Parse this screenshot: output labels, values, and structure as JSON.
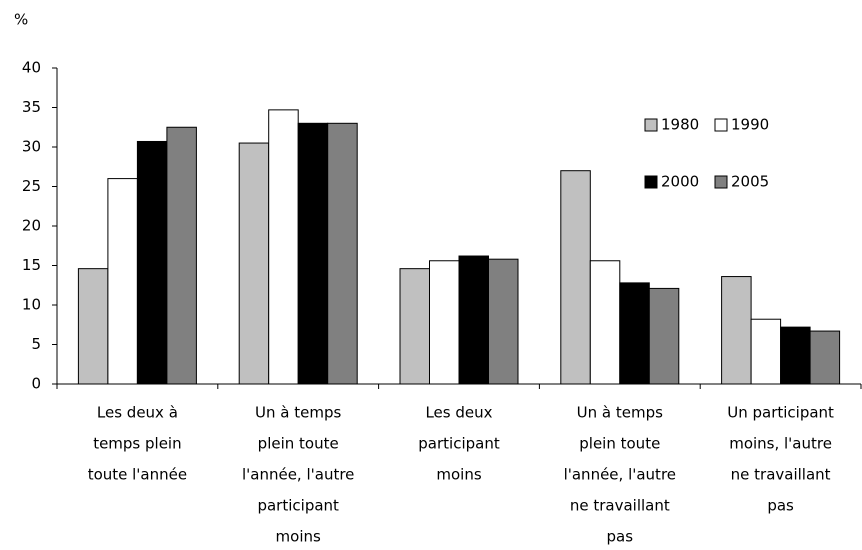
{
  "chart_data": {
    "type": "bar",
    "y_label": "%",
    "categories": [
      [
        "Les deux à",
        "temps plein",
        "toute l'année"
      ],
      [
        "Un à temps",
        "plein toute",
        "l'année, l'autre",
        "participant",
        "moins"
      ],
      [
        "Les deux",
        "participant",
        "moins"
      ],
      [
        "Un à temps",
        "plein toute",
        "l'année, l'autre",
        "ne travaillant",
        "pas"
      ],
      [
        "Un participant",
        "moins, l'autre",
        "ne travaillant",
        "pas"
      ]
    ],
    "series": [
      {
        "name": "1980",
        "color": "#c0c0c0",
        "values": [
          14.6,
          30.5,
          14.6,
          27,
          13.6
        ]
      },
      {
        "name": "1990",
        "color": "#ffffff",
        "values": [
          26,
          34.7,
          15.6,
          15.6,
          8.2
        ]
      },
      {
        "name": "2000",
        "color": "#000000",
        "values": [
          30.7,
          33,
          16.2,
          12.8,
          7.2
        ]
      },
      {
        "name": "2005",
        "color": "#808080",
        "values": [
          32.5,
          33,
          15.8,
          12.1,
          6.7
        ]
      }
    ],
    "ylim": [
      0,
      40
    ],
    "yticks": [
      0,
      5,
      10,
      15,
      20,
      25,
      30,
      35,
      40
    ],
    "grid": false,
    "legend": "upper right"
  }
}
